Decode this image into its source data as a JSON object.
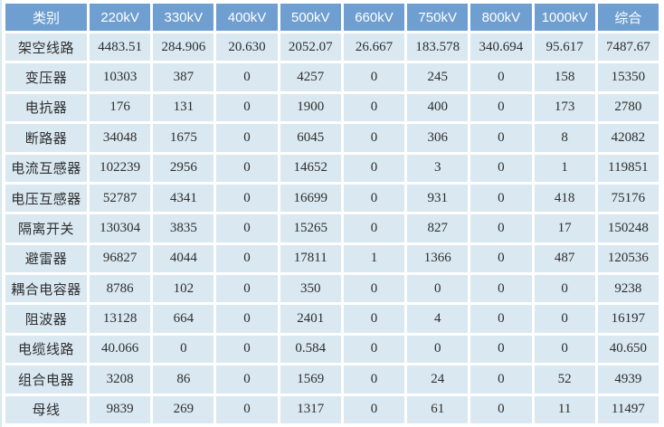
{
  "colors": {
    "header_bg": "#6f9fd0",
    "header_text": "#ffffff",
    "cell_bg": "#d9e8f1",
    "cell_text": "#2e2e2e",
    "gap": "#ffffff"
  },
  "chart_data": {
    "type": "table",
    "columns": [
      "类别",
      "220kV",
      "330kV",
      "400kV",
      "500kV",
      "660kV",
      "750kV",
      "800kV",
      "1000kV",
      "综合"
    ],
    "rows": [
      {
        "label": "架空线路",
        "values": [
          "4483.51",
          "284.906",
          "20.630",
          "2052.07",
          "26.667",
          "183.578",
          "340.694",
          "95.617",
          "7487.67"
        ]
      },
      {
        "label": "变压器",
        "values": [
          "10303",
          "387",
          "0",
          "4257",
          "0",
          "245",
          "0",
          "158",
          "15350"
        ]
      },
      {
        "label": "电抗器",
        "values": [
          "176",
          "131",
          "0",
          "1900",
          "0",
          "400",
          "0",
          "173",
          "2780"
        ]
      },
      {
        "label": "断路器",
        "values": [
          "34048",
          "1675",
          "0",
          "6045",
          "0",
          "306",
          "0",
          "8",
          "42082"
        ]
      },
      {
        "label": "电流互感器",
        "values": [
          "102239",
          "2956",
          "0",
          "14652",
          "0",
          "3",
          "0",
          "1",
          "119851"
        ]
      },
      {
        "label": "电压互感器",
        "values": [
          "52787",
          "4341",
          "0",
          "16699",
          "0",
          "931",
          "0",
          "418",
          "75176"
        ]
      },
      {
        "label": "隔离开关",
        "values": [
          "130304",
          "3835",
          "0",
          "15265",
          "0",
          "827",
          "0",
          "17",
          "150248"
        ]
      },
      {
        "label": "避雷器",
        "values": [
          "96827",
          "4044",
          "0",
          "17811",
          "1",
          "1366",
          "0",
          "487",
          "120536"
        ]
      },
      {
        "label": "耦合电容器",
        "values": [
          "8786",
          "102",
          "0",
          "350",
          "0",
          "0",
          "0",
          "0",
          "9238"
        ]
      },
      {
        "label": "阻波器",
        "values": [
          "13128",
          "664",
          "0",
          "2401",
          "0",
          "4",
          "0",
          "0",
          "16197"
        ]
      },
      {
        "label": "电缆线路",
        "values": [
          "40.066",
          "0",
          "0",
          "0.584",
          "0",
          "0",
          "0",
          "0",
          "40.650"
        ]
      },
      {
        "label": "组合电器",
        "values": [
          "3208",
          "86",
          "0",
          "1569",
          "0",
          "24",
          "0",
          "52",
          "4939"
        ]
      },
      {
        "label": "母线",
        "values": [
          "9839",
          "269",
          "0",
          "1317",
          "0",
          "61",
          "0",
          "11",
          "11497"
        ]
      }
    ]
  }
}
